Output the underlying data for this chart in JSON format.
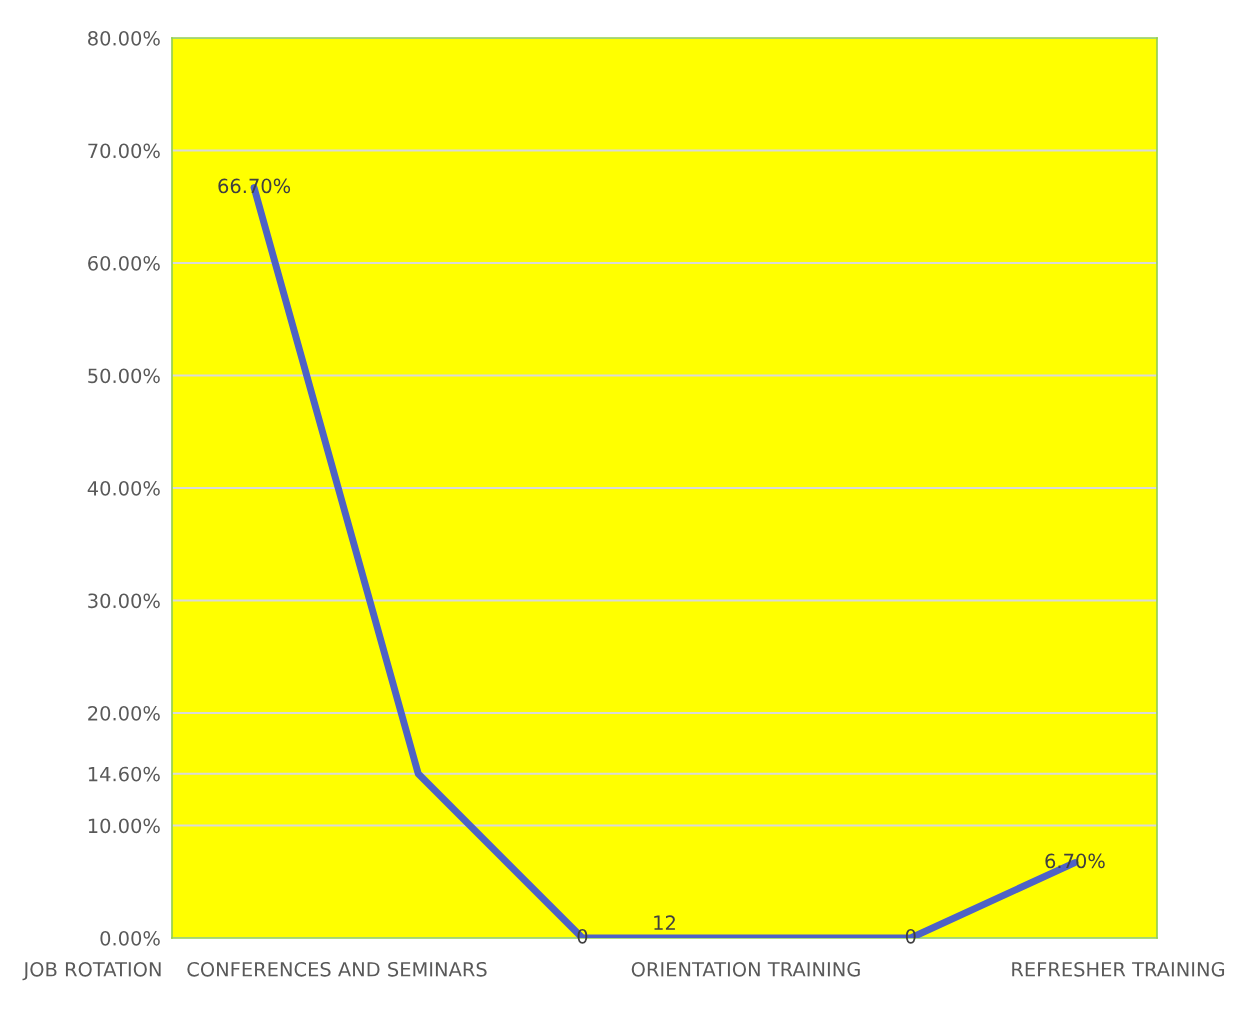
{
  "chart_data": {
    "type": "line",
    "categories": [
      null,
      null,
      null,
      null,
      null,
      null
    ],
    "series": [
      {
        "color": "#4e62c6",
        "values": [
          66.7,
          14.6,
          0,
          0,
          0,
          6.7
        ],
        "value_labels": [
          "66.70%",
          null,
          "0",
          null,
          "0",
          "6.70%"
        ]
      }
    ],
    "ylim": [
      0,
      80
    ],
    "yticks": [
      {
        "value": 0,
        "label": "0.00%"
      },
      {
        "value": 10,
        "label": "10.00%"
      },
      {
        "value": 14.6,
        "label": "14.60%"
      },
      {
        "value": 20,
        "label": "20.00%"
      },
      {
        "value": 30,
        "label": "30.00%"
      },
      {
        "value": 40,
        "label": "40.00%"
      },
      {
        "value": 50,
        "label": "50.00%"
      },
      {
        "value": 60,
        "label": "60.00%"
      },
      {
        "value": 70,
        "label": "70.00%"
      },
      {
        "value": 80,
        "label": "80.00%"
      }
    ],
    "grid": "y",
    "marker": "none",
    "line_style": "solid",
    "annotations": [
      "JOB ROTATION",
      "CONFERENCES AND SEMINARS",
      "ORIENTATION TRAINING",
      "REFRESHER TRAINING",
      "12"
    ]
  }
}
